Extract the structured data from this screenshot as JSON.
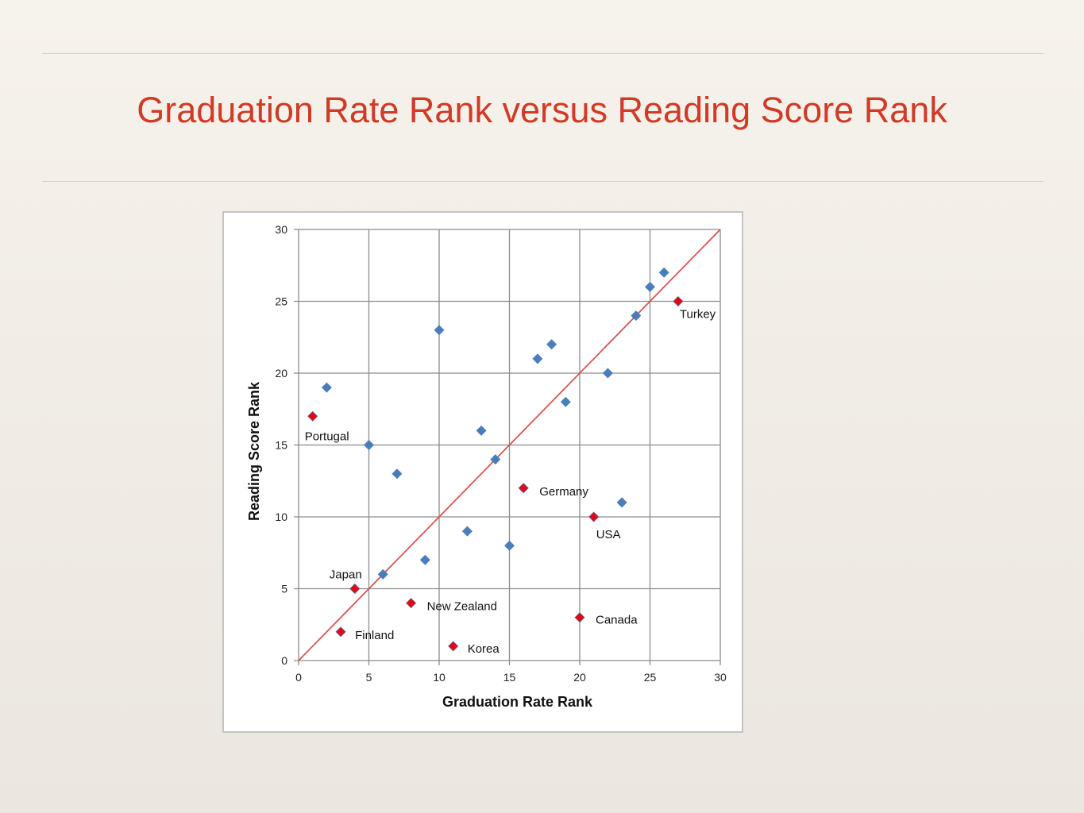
{
  "slide": {
    "title": "Graduation Rate Rank versus Reading Score Rank"
  },
  "chart_data": {
    "type": "scatter",
    "title": "",
    "xlabel": "Graduation Rate Rank",
    "ylabel": "Reading Score Rank",
    "xlim": [
      0,
      30
    ],
    "ylim": [
      0,
      30
    ],
    "xticks": [
      0,
      5,
      10,
      15,
      20,
      25,
      30
    ],
    "yticks": [
      0,
      5,
      10,
      15,
      20,
      25,
      30
    ],
    "grid": true,
    "colors": {
      "other": "#4a7ebb",
      "labeled": "#e30613",
      "labeled_outline": "#5b6f9a",
      "reference_line": "#d9534f",
      "grid": "#8c8c8c"
    },
    "reference_line": {
      "from": [
        0,
        0
      ],
      "to": [
        30,
        30
      ]
    },
    "series": [
      {
        "values": [
          {
            "x": 2,
            "y": 19
          },
          {
            "x": 5,
            "y": 15
          },
          {
            "x": 6,
            "y": 6
          },
          {
            "x": 7,
            "y": 13
          },
          {
            "x": 9,
            "y": 7
          },
          {
            "x": 10,
            "y": 23
          },
          {
            "x": 12,
            "y": 9
          },
          {
            "x": 13,
            "y": 16
          },
          {
            "x": 14,
            "y": 14
          },
          {
            "x": 15,
            "y": 8
          },
          {
            "x": 17,
            "y": 21
          },
          {
            "x": 18,
            "y": 22
          },
          {
            "x": 19,
            "y": 18
          },
          {
            "x": 22,
            "y": 20
          },
          {
            "x": 23,
            "y": 11
          },
          {
            "x": 24,
            "y": 24
          },
          {
            "x": 25,
            "y": 26
          },
          {
            "x": 26,
            "y": 27
          }
        ]
      },
      {
        "values": [
          {
            "x": 1,
            "y": 17,
            "label": "Portugal"
          },
          {
            "x": 4,
            "y": 5,
            "label": "Japan"
          },
          {
            "x": 3,
            "y": 2,
            "label": "Finland"
          },
          {
            "x": 8,
            "y": 4,
            "label": "New Zealand"
          },
          {
            "x": 11,
            "y": 1,
            "label": "Korea"
          },
          {
            "x": 16,
            "y": 12,
            "label": "Germany"
          },
          {
            "x": 21,
            "y": 10,
            "label": "USA"
          },
          {
            "x": 20,
            "y": 3,
            "label": "Canada"
          },
          {
            "x": 27,
            "y": 25,
            "label": "Turkey"
          }
        ]
      }
    ]
  }
}
